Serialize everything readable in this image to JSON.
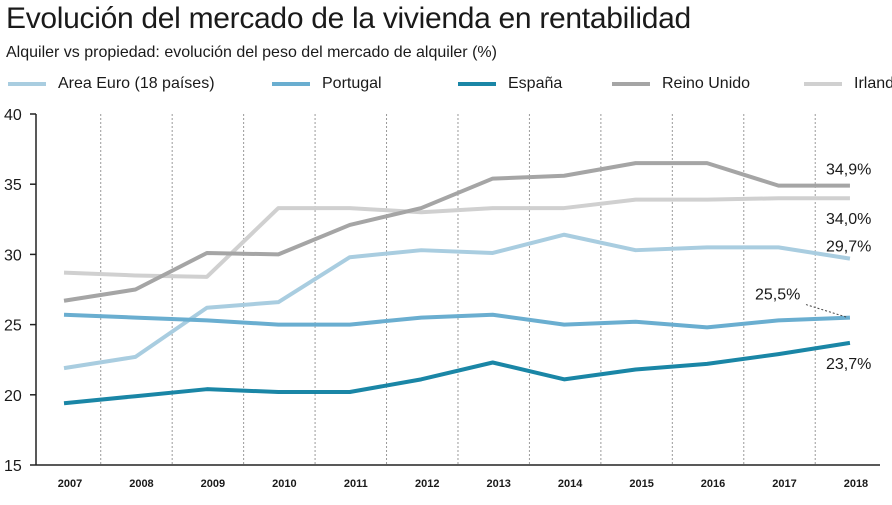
{
  "title": "Evolución del mercado de la vivienda en rentabilidad",
  "subtitle": "Alquiler vs propiedad: evolución del peso del mercado de alquiler (%)",
  "chart_data": {
    "type": "line",
    "title": "Evolución del mercado de la vivienda en rentabilidad",
    "subtitle": "Alquiler vs propiedad: evolución del peso del mercado de alquiler (%)",
    "x": [
      "2007",
      "2008",
      "2009",
      "2010",
      "2011",
      "2012",
      "2013",
      "2014",
      "2015",
      "2016",
      "2017",
      "2018"
    ],
    "ylim": [
      15,
      40
    ],
    "yticks": [
      15,
      20,
      25,
      30,
      35,
      40
    ],
    "grid": "vertical dotted",
    "legend": "top",
    "series": [
      {
        "name": "Area Euro (18 países)",
        "color": "#a9cde0",
        "values": [
          21.9,
          22.7,
          26.2,
          26.6,
          29.8,
          30.3,
          30.1,
          31.4,
          30.3,
          30.5,
          30.5,
          29.7
        ]
      },
      {
        "name": "Portugal",
        "color": "#6aaed0",
        "values": [
          25.7,
          25.5,
          25.3,
          25.0,
          25.0,
          25.5,
          25.7,
          25.0,
          25.2,
          24.8,
          25.3,
          25.5
        ]
      },
      {
        "name": "España",
        "color": "#1a86a6",
        "values": [
          19.4,
          19.9,
          20.4,
          20.2,
          20.2,
          21.1,
          22.3,
          21.1,
          21.8,
          22.2,
          22.9,
          23.7
        ]
      },
      {
        "name": "Reino Unido",
        "color": "#a5a5a5",
        "values": [
          26.7,
          27.5,
          30.1,
          30.0,
          32.1,
          33.3,
          35.4,
          35.6,
          36.5,
          36.5,
          34.9,
          34.9
        ]
      },
      {
        "name": "Irlanda",
        "color": "#d0d0d0",
        "values": [
          28.7,
          28.5,
          28.4,
          33.3,
          33.3,
          33.0,
          33.3,
          33.3,
          33.9,
          33.9,
          34.0,
          34.0
        ]
      }
    ],
    "annotations": [
      "34,9%",
      "34,0%",
      "29,7%",
      "25,5%",
      "23,7%"
    ]
  }
}
